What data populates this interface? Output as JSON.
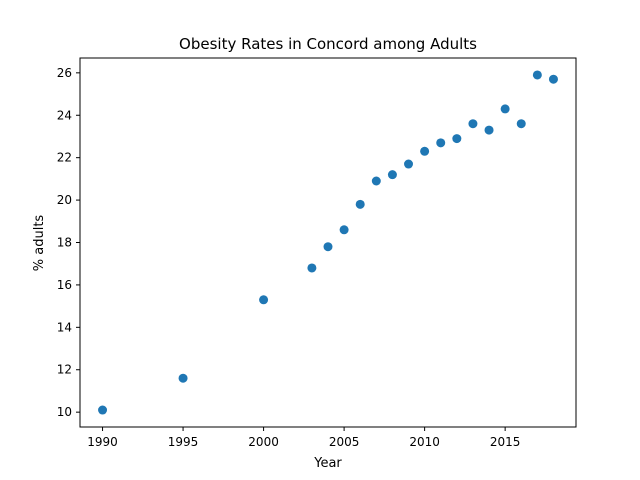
{
  "chart_data": {
    "type": "scatter",
    "title": "Obesity Rates in Concord among Adults",
    "xlabel": "Year",
    "ylabel": "% adults",
    "xlim": [
      1988.6,
      2019.4
    ],
    "ylim": [
      9.3,
      26.7
    ],
    "xticks": [
      1990,
      1995,
      2000,
      2005,
      2010,
      2015
    ],
    "yticks": [
      10,
      12,
      14,
      16,
      18,
      20,
      22,
      24,
      26
    ],
    "grid": false,
    "legend": "none",
    "marker_color": "#1f77b4",
    "points": [
      {
        "x": 1990,
        "y": 10.1
      },
      {
        "x": 1995,
        "y": 11.6
      },
      {
        "x": 2000,
        "y": 15.3
      },
      {
        "x": 2003,
        "y": 16.8
      },
      {
        "x": 2004,
        "y": 17.8
      },
      {
        "x": 2005,
        "y": 18.6
      },
      {
        "x": 2006,
        "y": 19.8
      },
      {
        "x": 2007,
        "y": 20.9
      },
      {
        "x": 2008,
        "y": 21.2
      },
      {
        "x": 2009,
        "y": 21.7
      },
      {
        "x": 2010,
        "y": 22.3
      },
      {
        "x": 2011,
        "y": 22.7
      },
      {
        "x": 2012,
        "y": 22.9
      },
      {
        "x": 2013,
        "y": 23.6
      },
      {
        "x": 2014,
        "y": 23.3
      },
      {
        "x": 2015,
        "y": 24.3
      },
      {
        "x": 2016,
        "y": 23.6
      },
      {
        "x": 2017,
        "y": 25.9
      },
      {
        "x": 2018,
        "y": 25.7
      }
    ]
  }
}
